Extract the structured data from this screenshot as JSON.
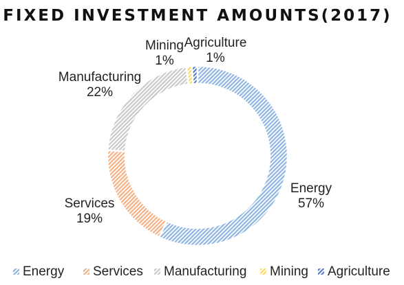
{
  "chart_data": {
    "type": "pie",
    "title": "FIXED INVESTMENT AMOUNTS(2017)",
    "slices": [
      {
        "name": "Energy",
        "value": 57,
        "label": "57%",
        "color": "#8eb4e3"
      },
      {
        "name": "Services",
        "value": 19,
        "label": "19%",
        "color": "#f4b183"
      },
      {
        "name": "Manufacturing",
        "value": 22,
        "label": "22%",
        "color": "#c9c9c9"
      },
      {
        "name": "Mining",
        "value": 1,
        "label": "1%",
        "color": "#ffd966"
      },
      {
        "name": "Agriculture",
        "value": 1,
        "label": "1%",
        "color": "#5b7fc4"
      }
    ],
    "legend_position": "bottom",
    "donut": true
  }
}
